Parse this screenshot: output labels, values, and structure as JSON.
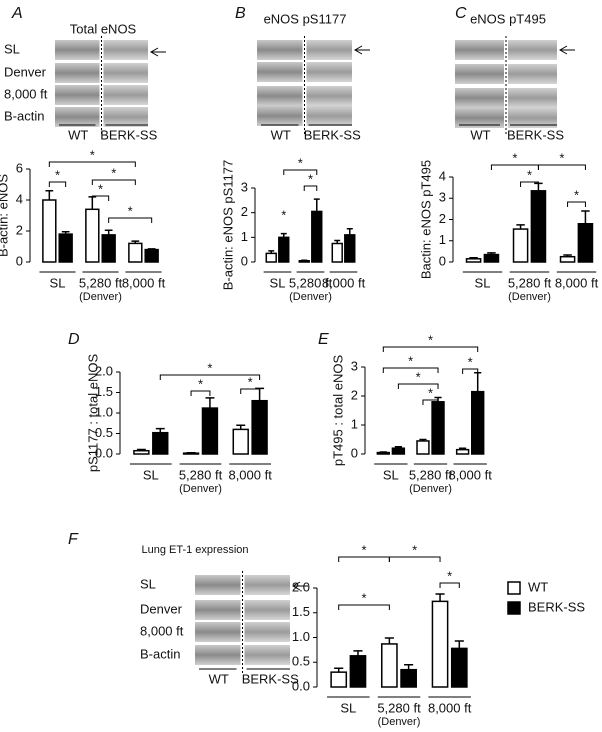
{
  "blots": [
    {
      "panel": "A",
      "title": "Total eNOS",
      "rows": [
        "SL",
        "Denver",
        "8,000 ft",
        "B-actin"
      ],
      "groups": [
        "WT",
        "BERK-SS"
      ]
    },
    {
      "panel": "B",
      "title": "eNOS  pS1177",
      "groups": [
        "WT",
        "BERK-SS"
      ]
    },
    {
      "panel": "C",
      "title": "eNOS  pT495",
      "groups": [
        "WT",
        "BERK-SS"
      ]
    },
    {
      "title": "Lung ET-1 expression",
      "rows": [
        "SL",
        "Denver",
        "8,000 ft",
        "B-actin"
      ],
      "groups": [
        "WT",
        "BERK-SS"
      ]
    }
  ],
  "chart_data": [
    {
      "type": "bar",
      "y_label": "B-actin: eNOS",
      "categories": [
        "SL",
        "5,280 ft",
        "8,000 ft"
      ],
      "x_sublabels": [
        null,
        "(Denver)",
        null
      ],
      "series": [
        {
          "name": "WT",
          "color": "#ffffff",
          "values": [
            4.0,
            3.4,
            1.2
          ],
          "errors": [
            0.6,
            0.8,
            0.15
          ]
        },
        {
          "name": "BERK-SS",
          "color": "#000000",
          "values": [
            1.8,
            1.75,
            0.8
          ],
          "errors": [
            0.15,
            0.3,
            0.05
          ]
        }
      ],
      "ylim": [
        0,
        6
      ],
      "yticks": [
        0,
        2,
        4,
        6
      ],
      "annotations": [
        "*",
        "*",
        "*",
        "*",
        "*"
      ]
    },
    {
      "type": "bar",
      "y_label": "B-actin: eNOS  pS1177",
      "categories": [
        "SL",
        "5,280 ft",
        "8,000 ft"
      ],
      "x_sublabels": [
        null,
        "(Denver)",
        null
      ],
      "series": [
        {
          "name": "WT",
          "color": "#ffffff",
          "values": [
            0.35,
            0.05,
            0.75
          ],
          "errors": [
            0.1,
            0.02,
            0.12
          ]
        },
        {
          "name": "BERK-SS",
          "color": "#000000",
          "values": [
            1.0,
            2.05,
            1.1
          ],
          "errors": [
            0.15,
            0.5,
            0.25
          ]
        }
      ],
      "ylim": [
        0,
        3
      ],
      "yticks": [
        0,
        1,
        2,
        3
      ],
      "annotations": [
        "*",
        "*",
        "*"
      ]
    },
    {
      "type": "bar",
      "y_label": "Bactin: eNOS pT495",
      "categories": [
        "SL",
        "5,280 ft",
        "8,000 ft"
      ],
      "x_sublabels": [
        null,
        "(Denver)",
        null
      ],
      "series": [
        {
          "name": "WT",
          "color": "#ffffff",
          "values": [
            0.15,
            1.55,
            0.25
          ],
          "errors": [
            0.05,
            0.2,
            0.08
          ]
        },
        {
          "name": "BERK-SS",
          "color": "#000000",
          "values": [
            0.35,
            3.35,
            1.8
          ],
          "errors": [
            0.08,
            0.35,
            0.6
          ]
        }
      ],
      "ylim": [
        0,
        4
      ],
      "yticks": [
        0,
        1,
        2,
        3,
        4
      ],
      "annotations": [
        "*",
        "*",
        "*",
        "*"
      ]
    },
    {
      "type": "bar",
      "panel": "D",
      "y_label": "pS1177 : total eNOS",
      "categories": [
        "SL",
        "5,280 ft",
        "8,000 ft"
      ],
      "x_sublabels": [
        null,
        "(Denver)",
        null
      ],
      "series": [
        {
          "name": "WT",
          "color": "#ffffff",
          "values": [
            0.08,
            0.02,
            0.6
          ],
          "errors": [
            0.03,
            0.01,
            0.1
          ]
        },
        {
          "name": "BERK-SS",
          "color": "#000000",
          "values": [
            0.52,
            1.12,
            1.3
          ],
          "errors": [
            0.1,
            0.25,
            0.3
          ]
        }
      ],
      "ylim": [
        0,
        2
      ],
      "yticks": [
        {
          "value": 0,
          "label": "0.0"
        },
        0.5,
        {
          "value": 1,
          "label": "1.0"
        },
        1.5,
        {
          "value": 2,
          "label": "2.0"
        }
      ],
      "annotations": [
        "*",
        "*",
        "*"
      ]
    },
    {
      "type": "bar",
      "panel": "E",
      "y_label": "pT495 : total eNOS",
      "categories": [
        "SL",
        "5,280 ft",
        "8,000 ft"
      ],
      "x_sublabels": [
        null,
        "(Denver)",
        null
      ],
      "series": [
        {
          "name": "WT",
          "color": "#ffffff",
          "values": [
            0.05,
            0.45,
            0.15
          ],
          "errors": [
            0.02,
            0.05,
            0.05
          ]
        },
        {
          "name": "BERK-SS",
          "color": "#000000",
          "values": [
            0.2,
            1.8,
            2.15
          ],
          "errors": [
            0.05,
            0.15,
            0.65
          ]
        }
      ],
      "ylim": [
        0,
        3
      ],
      "yticks": [
        0,
        1,
        2,
        3
      ],
      "annotations": [
        "*",
        "*",
        "*",
        "*",
        "*"
      ]
    },
    {
      "type": "bar",
      "panel": "F",
      "categories": [
        "SL",
        "5,280 ft",
        "8,000 ft"
      ],
      "x_sublabels": [
        null,
        "(Denver)",
        null
      ],
      "series": [
        {
          "name": "WT",
          "color": "#ffffff",
          "values": [
            0.3,
            0.87,
            1.73
          ],
          "errors": [
            0.08,
            0.12,
            0.15
          ]
        },
        {
          "name": "BERK-SS",
          "color": "#000000",
          "values": [
            0.63,
            0.35,
            0.78
          ],
          "errors": [
            0.1,
            0.1,
            0.15
          ]
        }
      ],
      "ylim": [
        0,
        2
      ],
      "yticks": [
        {
          "value": 0,
          "label": "0.0"
        },
        0.5,
        {
          "value": 1,
          "label": "1.0"
        },
        1.5,
        {
          "value": 2,
          "label": "2.0"
        }
      ],
      "annotations": [
        "*",
        "*",
        "*",
        "*"
      ],
      "legend": true
    }
  ]
}
